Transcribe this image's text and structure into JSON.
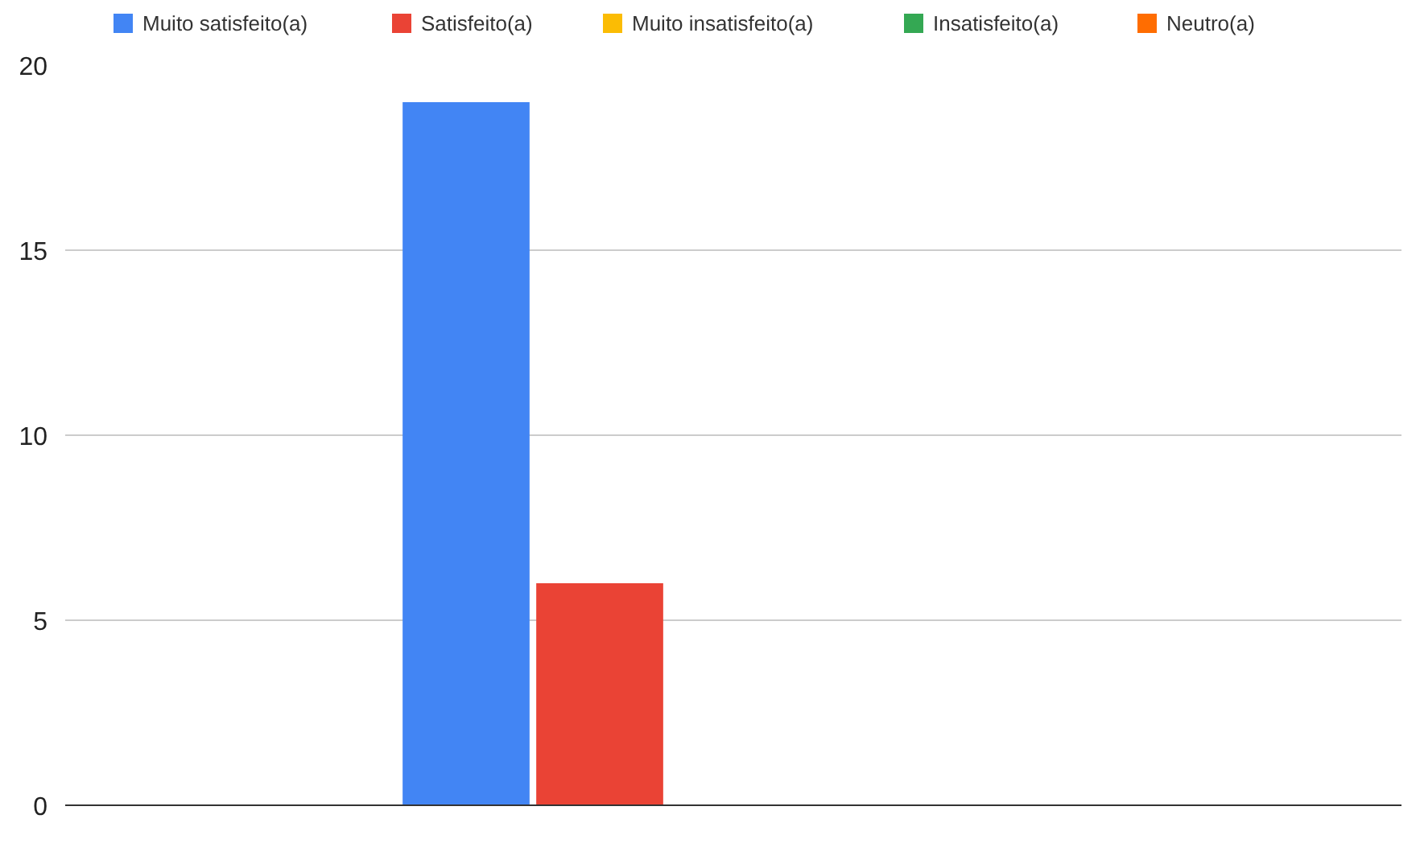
{
  "chart_data": {
    "type": "bar",
    "categories": [
      null
    ],
    "series": [
      {
        "name": "Muito satisfeito(a)",
        "color": "#4285f4",
        "values": [
          19
        ]
      },
      {
        "name": "Satisfeito(a)",
        "color": "#ea4335",
        "values": [
          6
        ]
      },
      {
        "name": "Muito insatisfeito(a)",
        "color": "#fbbc04",
        "values": [
          0
        ]
      },
      {
        "name": "Insatisfeito(a)",
        "color": "#34a853",
        "values": [
          0
        ]
      },
      {
        "name": "Neutro(a)",
        "color": "#ff6d01",
        "values": [
          0
        ]
      }
    ],
    "ylim": [
      0,
      20
    ],
    "yticks": [
      0,
      5,
      10,
      15,
      20
    ],
    "grid": "y",
    "legend": "top"
  }
}
